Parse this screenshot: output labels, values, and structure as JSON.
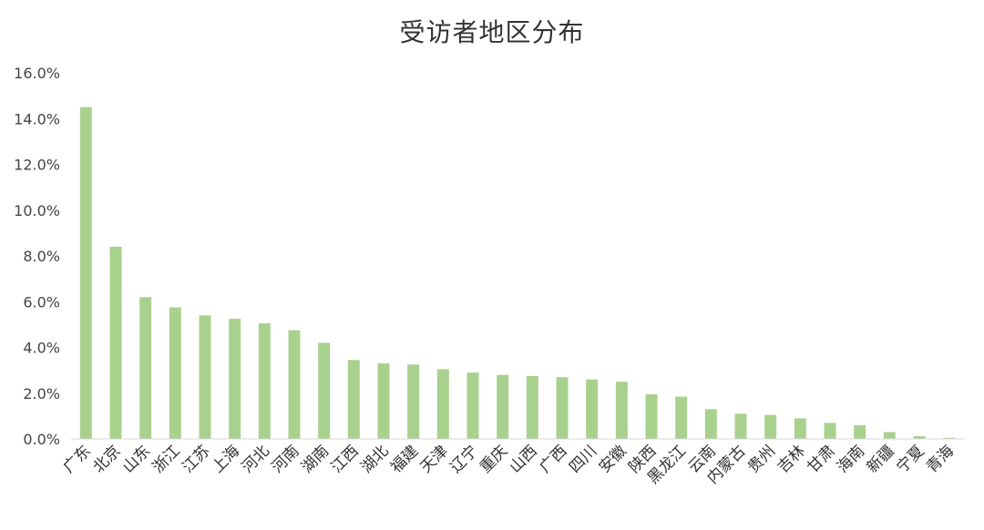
{
  "chart_data": {
    "type": "bar",
    "title": "受访者地区分布",
    "xlabel": "",
    "ylabel": "",
    "ylim": [
      0,
      16
    ],
    "y_tick_values": [
      0,
      2,
      4,
      6,
      8,
      10,
      12,
      14,
      16
    ],
    "y_tick_labels": [
      "0.0%",
      "2.0%",
      "4.0%",
      "6.0%",
      "8.0%",
      "10.0%",
      "12.0%",
      "14.0%",
      "16.0%"
    ],
    "grid": false,
    "legend": "none",
    "bar_color": "#a9d18e",
    "categories": [
      "广东",
      "北京",
      "山东",
      "浙江",
      "江苏",
      "上海",
      "河北",
      "河南",
      "湖南",
      "江西",
      "湖北",
      "福建",
      "天津",
      "辽宁",
      "重庆",
      "山西",
      "广西",
      "四川",
      "安徽",
      "陕西",
      "黑龙江",
      "云南",
      "内蒙古",
      "贵州",
      "吉林",
      "甘肃",
      "海南",
      "新疆",
      "宁夏",
      "青海"
    ],
    "values": [
      14.5,
      8.4,
      6.2,
      5.75,
      5.4,
      5.25,
      5.05,
      4.75,
      4.2,
      3.45,
      3.3,
      3.25,
      3.05,
      2.9,
      2.8,
      2.75,
      2.7,
      2.6,
      2.5,
      1.95,
      1.85,
      1.3,
      1.1,
      1.05,
      0.9,
      0.7,
      0.6,
      0.3,
      0.12,
      0.05
    ]
  }
}
